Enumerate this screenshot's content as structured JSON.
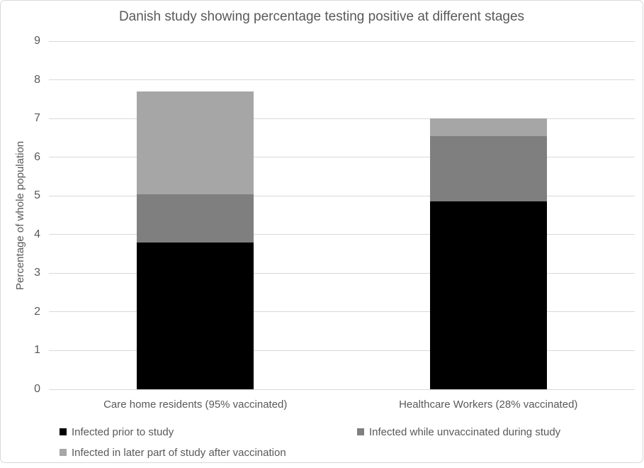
{
  "colors": {
    "text": "#595959",
    "gridline": "#d9d9d9",
    "chart_border": "#d9d9d9",
    "background": "#ffffff"
  },
  "chart_data": {
    "type": "bar",
    "stacked": true,
    "title": "Danish study showing percentage testing positive at different stages",
    "xlabel": "",
    "ylabel": "Percentage of whole population",
    "ylim": [
      0,
      9
    ],
    "ytick_step": 1,
    "grid": true,
    "legend_position": "bottom-left",
    "categories": [
      "Care home residents (95% vaccinated)",
      "Healthcare Workers (28% vaccinated)"
    ],
    "series": [
      {
        "name": "Infected prior to study",
        "color": "#000000",
        "values": [
          3.8,
          4.85
        ]
      },
      {
        "name": "Infected while unvaccinated during study",
        "color": "#7f7f7f",
        "values": [
          1.25,
          1.7
        ]
      },
      {
        "name": "Infected in later part of study after vaccination",
        "color": "#a6a6a6",
        "values": [
          2.65,
          0.45
        ]
      }
    ],
    "stack_totals": [
      7.7,
      7.0
    ]
  }
}
